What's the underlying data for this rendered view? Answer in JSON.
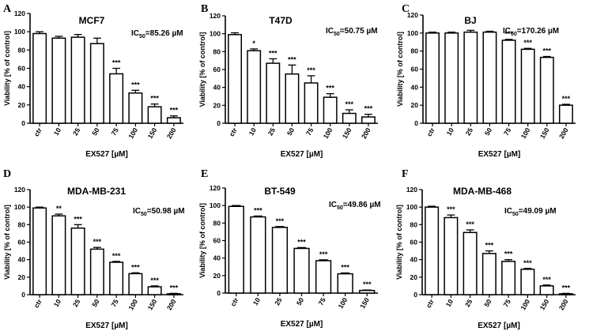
{
  "chart_data": [
    {
      "type": "bar",
      "panel": "A",
      "title": "MCF7",
      "ic50_prefix": "IC",
      "ic50_sub": "50",
      "ic50_value": "=85.26 µM",
      "xlabel": "EX527 [µM]",
      "ylabel": "Viability [% of control]",
      "ylim": [
        0,
        120
      ],
      "yticks": [
        0,
        20,
        40,
        60,
        80,
        100,
        120
      ],
      "categories": [
        "ctr",
        "10",
        "25",
        "50",
        "75",
        "100",
        "150",
        "200"
      ],
      "values": [
        98,
        93,
        94,
        87,
        54,
        33,
        18,
        6
      ],
      "errors": [
        2,
        2,
        3,
        6,
        6,
        3,
        3,
        2
      ],
      "significance": [
        "",
        "",
        "",
        "",
        "***",
        "***",
        "***",
        "***"
      ]
    },
    {
      "type": "bar",
      "panel": "B",
      "title": "T47D",
      "ic50_prefix": "IC",
      "ic50_sub": "50",
      "ic50_value": "=50.75 µM",
      "xlabel": "EX527 [µM]",
      "ylabel": "Viability [% of control]",
      "ylim": [
        0,
        120
      ],
      "yticks": [
        0,
        20,
        40,
        60,
        80,
        100,
        120
      ],
      "categories": [
        "ctr",
        "10",
        "25",
        "50",
        "75",
        "100",
        "150",
        "200"
      ],
      "values": [
        99,
        81,
        67,
        55,
        45,
        29,
        11,
        7
      ],
      "errors": [
        2,
        2,
        5,
        10,
        8,
        4,
        4,
        3
      ],
      "significance": [
        "",
        "*",
        "***",
        "***",
        "***",
        "***",
        "***",
        "***"
      ]
    },
    {
      "type": "bar",
      "panel": "C",
      "title": "BJ",
      "ic50_prefix": "IC",
      "ic50_sub": "50",
      "ic50_value": "=170.26 µM",
      "xlabel": "EX527 [µM]",
      "ylabel": "Viability [% of control]",
      "ylim": [
        0,
        120
      ],
      "yticks": [
        0,
        20,
        40,
        60,
        80,
        100,
        120
      ],
      "categories": [
        "ctr",
        "10",
        "25",
        "50",
        "75",
        "100",
        "150",
        "200"
      ],
      "values": [
        100,
        100,
        101,
        101,
        92,
        82,
        73,
        20
      ],
      "errors": [
        1,
        1,
        2,
        1,
        1,
        1,
        1,
        1
      ],
      "significance": [
        "",
        "",
        "",
        "",
        "***",
        "***",
        "***",
        "***"
      ]
    },
    {
      "type": "bar",
      "panel": "D",
      "title": "MDA-MB-231",
      "ic50_prefix": "IC",
      "ic50_sub": "50",
      "ic50_value": "=50.98 µM",
      "xlabel": "EX527 [µM]",
      "ylabel": "Viability [% of control]",
      "ylim": [
        0,
        120
      ],
      "yticks": [
        0,
        20,
        40,
        60,
        80,
        100,
        120
      ],
      "categories": [
        "ctr",
        "10",
        "25",
        "50",
        "75",
        "100",
        "150",
        "200"
      ],
      "values": [
        99,
        90,
        76,
        52,
        37,
        24,
        9,
        1
      ],
      "errors": [
        1,
        2,
        4,
        2,
        1,
        1,
        1,
        0.5
      ],
      "significance": [
        "",
        "**",
        "***",
        "***",
        "***",
        "***",
        "***",
        "***"
      ]
    },
    {
      "type": "bar",
      "panel": "E",
      "title": "BT-549",
      "ic50_prefix": "IC",
      "ic50_sub": "50",
      "ic50_value": "=49.86 µM",
      "xlabel": "EX527 [µM]",
      "ylabel": "Viability [% of control]",
      "ylim": [
        0,
        120
      ],
      "yticks": [
        0,
        20,
        40,
        60,
        80,
        100,
        120
      ],
      "categories": [
        "ctr",
        "10",
        "25",
        "50",
        "75",
        "100",
        "150"
      ],
      "values": [
        99,
        87,
        75,
        51,
        37,
        22,
        3
      ],
      "errors": [
        1,
        1,
        1,
        1,
        1,
        1,
        0.5
      ],
      "significance": [
        "",
        "***",
        "***",
        "***",
        "***",
        "***",
        "***"
      ]
    },
    {
      "type": "bar",
      "panel": "F",
      "title": "MDA-MB-468",
      "ic50_prefix": "IC",
      "ic50_sub": "50",
      "ic50_value": "=49.09 µM",
      "xlabel": "EX527 [µM]",
      "ylabel": "Viability [% of control]",
      "ylim": [
        0,
        120
      ],
      "yticks": [
        0,
        20,
        40,
        60,
        80,
        100,
        120
      ],
      "categories": [
        "ctr",
        "10",
        "25",
        "50",
        "75",
        "100",
        "150",
        "200"
      ],
      "values": [
        100,
        88,
        71,
        47,
        38,
        29,
        10,
        1
      ],
      "errors": [
        1,
        3,
        3,
        3,
        2,
        1,
        1,
        0.5
      ],
      "significance": [
        "",
        "***",
        "***",
        "***",
        "***",
        "***",
        "***",
        "***"
      ]
    }
  ]
}
